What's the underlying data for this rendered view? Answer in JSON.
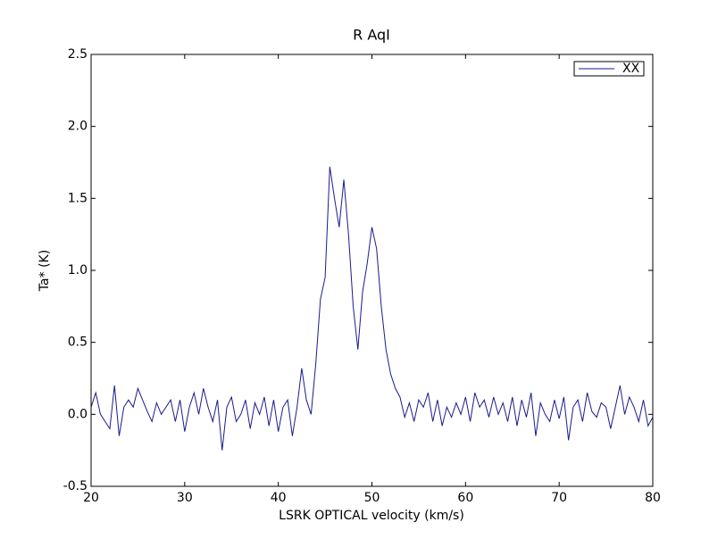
{
  "chart_data": {
    "type": "line",
    "title": "R AqI",
    "xlabel": "LSRK OPTICAL velocity (km/s)",
    "ylabel": "Ta* (K)",
    "x": [
      20,
      20.5,
      21,
      21.5,
      22,
      22.5,
      23,
      23.5,
      24,
      24.5,
      25,
      25.5,
      26,
      26.5,
      27,
      27.5,
      28,
      28.5,
      29,
      29.5,
      30,
      30.5,
      31,
      31.5,
      32,
      32.5,
      33,
      33.5,
      34,
      34.5,
      35,
      35.5,
      36,
      36.5,
      37,
      37.5,
      38,
      38.5,
      39,
      39.5,
      40,
      40.5,
      41,
      41.5,
      42,
      42.5,
      43,
      43.5,
      44,
      44.5,
      45,
      45.5,
      46,
      46.5,
      47,
      47.5,
      48,
      48.5,
      49,
      49.5,
      50,
      50.5,
      51,
      51.5,
      52,
      52.5,
      53,
      53.5,
      54,
      54.5,
      55,
      55.5,
      56,
      56.5,
      57,
      57.5,
      58,
      58.5,
      59,
      59.5,
      60,
      60.5,
      61,
      61.5,
      62,
      62.5,
      63,
      63.5,
      64,
      64.5,
      65,
      65.5,
      66,
      66.5,
      67,
      67.5,
      68,
      68.5,
      69,
      69.5,
      70,
      70.5,
      71,
      71.5,
      72,
      72.5,
      73,
      73.5,
      74,
      74.5,
      75,
      75.5,
      76,
      76.5,
      77,
      77.5,
      78,
      78.5,
      79,
      79.5,
      80
    ],
    "series": [
      {
        "name": "XX",
        "color": "#1a1a8c",
        "values": [
          0.05,
          0.15,
          0.0,
          -0.05,
          -0.1,
          0.2,
          -0.15,
          0.05,
          0.1,
          0.05,
          0.18,
          0.1,
          0.02,
          -0.05,
          0.08,
          0.0,
          0.05,
          0.1,
          -0.05,
          0.1,
          -0.12,
          0.05,
          0.15,
          0.0,
          0.18,
          0.05,
          -0.05,
          0.1,
          -0.25,
          0.05,
          0.12,
          -0.05,
          0.0,
          0.1,
          -0.1,
          0.08,
          0.0,
          0.12,
          -0.08,
          0.1,
          -0.12,
          0.05,
          0.1,
          -0.15,
          0.05,
          0.32,
          0.1,
          0.0,
          0.35,
          0.8,
          0.95,
          1.72,
          1.5,
          1.3,
          1.63,
          1.25,
          0.75,
          0.45,
          0.85,
          1.05,
          1.3,
          1.15,
          0.75,
          0.45,
          0.28,
          0.18,
          0.12,
          -0.02,
          0.08,
          -0.05,
          0.1,
          0.05,
          0.15,
          -0.05,
          0.1,
          -0.08,
          0.05,
          -0.02,
          0.08,
          0.0,
          0.12,
          -0.05,
          0.15,
          0.05,
          0.1,
          -0.02,
          0.12,
          0.0,
          0.08,
          -0.05,
          0.12,
          -0.08,
          0.1,
          -0.02,
          0.15,
          -0.15,
          0.08,
          0.0,
          -0.05,
          0.1,
          -0.03,
          0.12,
          -0.18,
          0.05,
          0.1,
          -0.05,
          0.15,
          0.02,
          -0.02,
          0.08,
          0.05,
          -0.1,
          0.05,
          0.2,
          0.0,
          0.12,
          0.05,
          -0.05,
          0.1,
          -0.08,
          -0.02
        ]
      }
    ],
    "xlim": [
      20,
      80
    ],
    "xticks": [
      20,
      30,
      40,
      50,
      60,
      70,
      80
    ],
    "ylim": [
      -0.5,
      2.5
    ],
    "yticks": [
      -0.5,
      {
        "value": 0,
        "label": "0.0"
      },
      0.5,
      {
        "value": 1,
        "label": "1.0"
      },
      1.5,
      {
        "value": 2,
        "label": "2.0"
      },
      2.5
    ],
    "legend": "upper right",
    "grid": false
  }
}
